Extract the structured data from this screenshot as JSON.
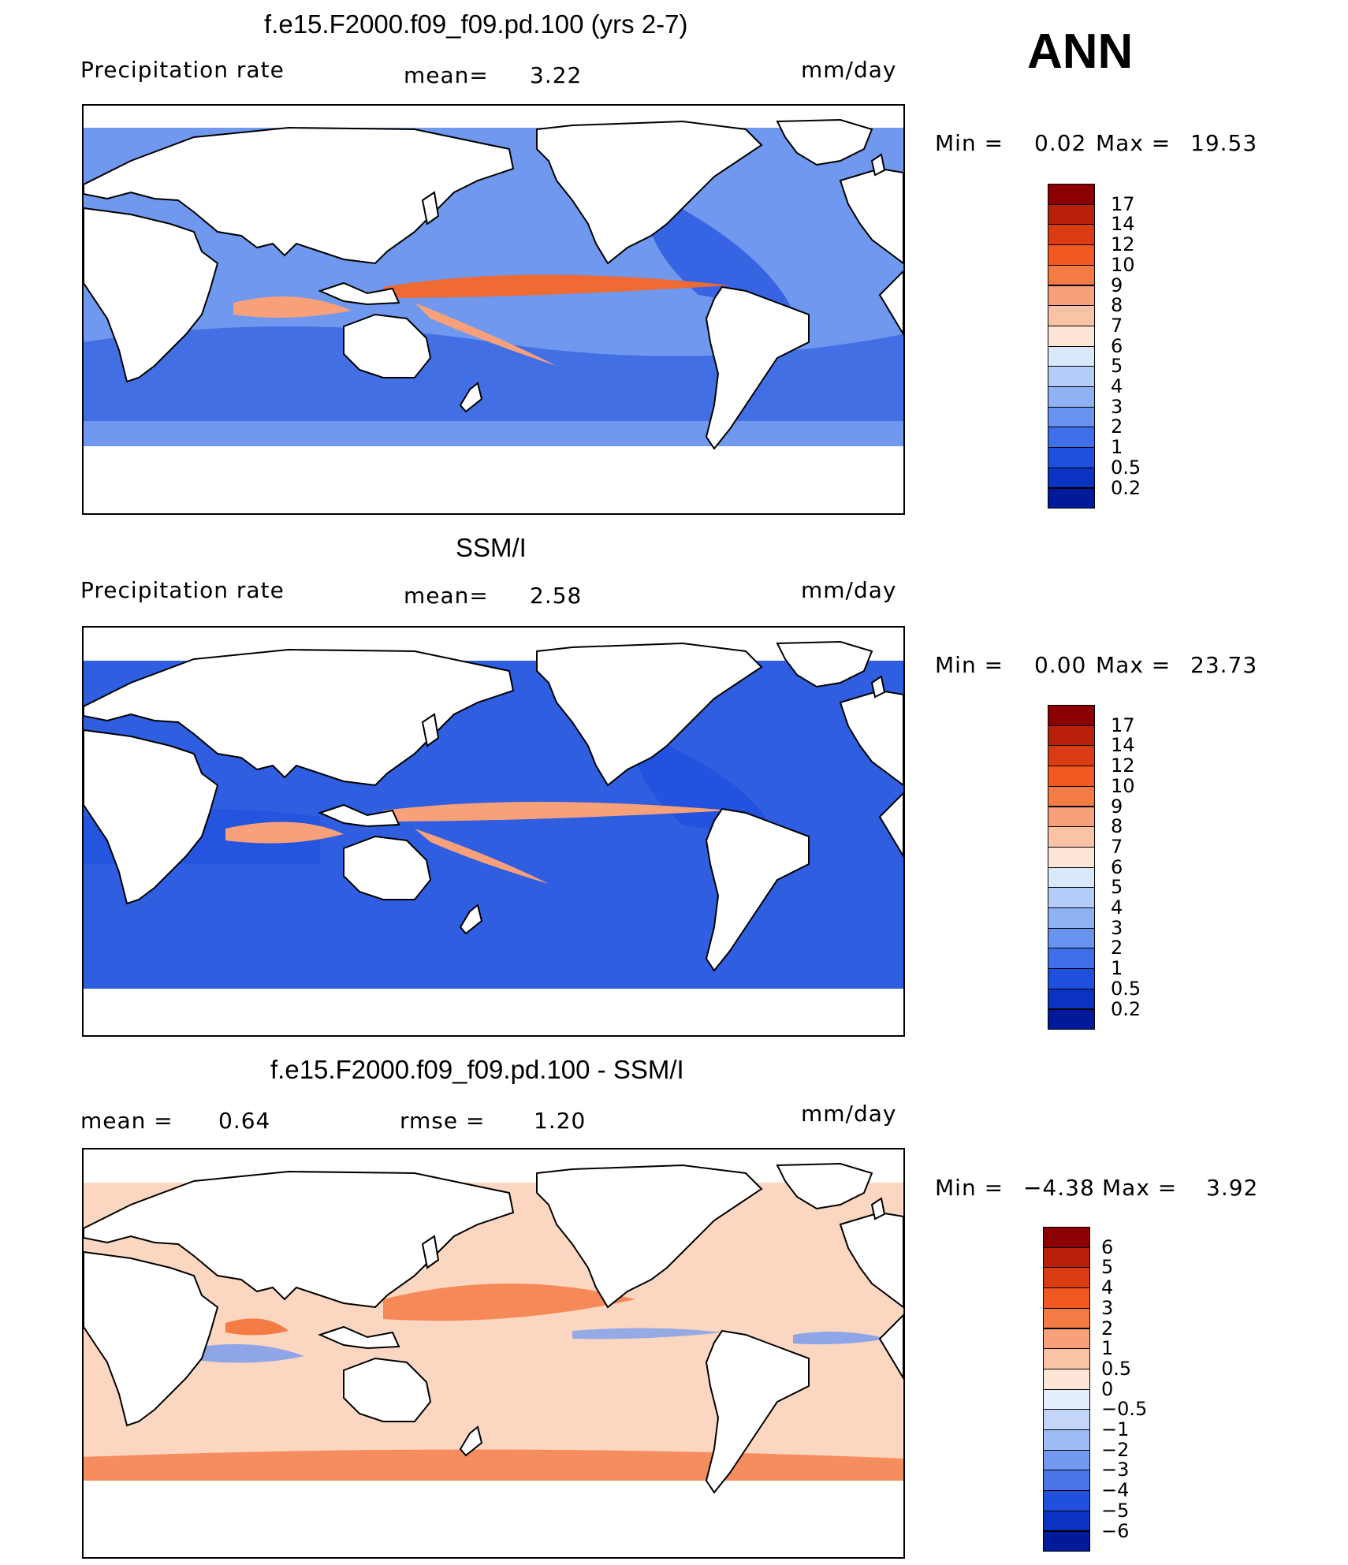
{
  "season": "ANN",
  "panels": [
    {
      "id": "model",
      "title": "f.e15.F2000.f09_f09.pd.100 (yrs 2-7)",
      "left_label": "Precipitation  rate",
      "center_label": "mean=",
      "center_value": "3.22",
      "units": "mm/day",
      "min_label": "Min  =",
      "min_value": "0.02",
      "max_label": "Max  =",
      "max_value": "19.53",
      "colorbar": {
        "ticks": [
          "17",
          "14",
          "12",
          "10",
          "9",
          "8",
          "7",
          "6",
          "5",
          "4",
          "3",
          "2",
          "1",
          "0.5",
          "0.2"
        ],
        "colors": [
          "#8b0000",
          "#b8200a",
          "#d93c12",
          "#f05a22",
          "#f57b45",
          "#f8a07a",
          "#fac3a6",
          "#fde6d6",
          "#d9e8fb",
          "#b5cdf8",
          "#8fb2f4",
          "#6893ef",
          "#3f6fe8",
          "#1f4fdd",
          "#0b33c2",
          "#001a9a"
        ]
      }
    },
    {
      "id": "obs",
      "title": "SSM/I",
      "left_label": "Precipitation  rate",
      "center_label": "mean=",
      "center_value": "2.58",
      "units": "mm/day",
      "min_label": "Min  =",
      "min_value": "0.00",
      "max_label": "Max  =",
      "max_value": "23.73",
      "colorbar": {
        "ticks": [
          "17",
          "14",
          "12",
          "10",
          "9",
          "8",
          "7",
          "6",
          "5",
          "4",
          "3",
          "2",
          "1",
          "0.5",
          "0.2"
        ],
        "colors": [
          "#8b0000",
          "#b8200a",
          "#d93c12",
          "#f05a22",
          "#f57b45",
          "#f8a07a",
          "#fac3a6",
          "#fde6d6",
          "#d9e8fb",
          "#b5cdf8",
          "#8fb2f4",
          "#6893ef",
          "#3f6fe8",
          "#1f4fdd",
          "#0b33c2",
          "#001a9a"
        ]
      }
    },
    {
      "id": "diff",
      "title": "f.e15.F2000.f09_f09.pd.100 - SSM/I",
      "left_label": "mean  =",
      "left_value": "0.64",
      "center_label": "rmse  =",
      "center_value": "1.20",
      "units": "mm/day",
      "min_label": "Min  =",
      "min_value": "−4.38",
      "max_label": "Max  =",
      "max_value": "3.92",
      "colorbar": {
        "ticks": [
          "6",
          "5",
          "4",
          "3",
          "2",
          "1",
          "0.5",
          "0",
          "−0.5",
          "−1",
          "−2",
          "−3",
          "−4",
          "−5",
          "−6"
        ],
        "colors": [
          "#8b0000",
          "#b8200a",
          "#d93c12",
          "#f05a22",
          "#f57b45",
          "#f8a07a",
          "#fac3a6",
          "#fde6d6",
          "#e4eefc",
          "#c3d6fa",
          "#9dbcf6",
          "#7399f0",
          "#4a76e8",
          "#2150dc",
          "#0b33c2",
          "#001a9a"
        ]
      }
    }
  ],
  "colors": {
    "ocean_model": "#6f98ee",
    "ocean_obs": "#2f5ee0",
    "ocean_diff": "#fbd6c0",
    "land": "#ffffff",
    "coast": "#000000",
    "itcz_model": "#f06a34",
    "itcz_obs": "#f8a07a",
    "diff_pos": "#f57b45",
    "diff_neg": "#7399f0"
  }
}
